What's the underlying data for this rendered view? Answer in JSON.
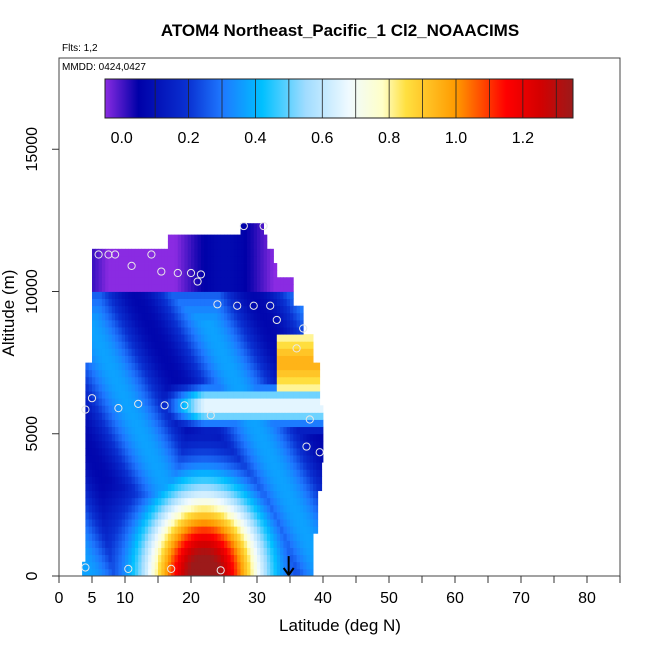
{
  "chart_data": {
    "type": "heatmap",
    "title": "ATOM4 Northeast_Pacific_1 Cl2_NOAACIMS",
    "flights_label": "Flts: 1,2",
    "date_label": "MMDD: 0424,0427",
    "xlabel": "Latitude (deg N)",
    "ylabel": "Altitude (m)",
    "xlim": [
      0,
      85
    ],
    "ylim": [
      0,
      18000
    ],
    "x_ticks": [
      0,
      5,
      10,
      20,
      30,
      40,
      50,
      60,
      70,
      80
    ],
    "x_minor_ticks": [
      15,
      25,
      35,
      45,
      55,
      65,
      75,
      85
    ],
    "y_ticks": [
      0,
      5000,
      10000,
      15000
    ],
    "colorbar": {
      "range": [
        -0.05,
        1.35
      ],
      "tick_values": [
        0.0,
        0.2,
        0.4,
        0.6,
        0.8,
        1.0,
        1.2
      ],
      "tick_labels": [
        "0.0",
        "0.2",
        "0.4",
        "0.6",
        "0.8",
        "1.0",
        "1.2"
      ],
      "colors": [
        {
          "v": -0.05,
          "c": "#8a2be2"
        },
        {
          "v": 0.05,
          "c": "#0000a8"
        },
        {
          "v": 0.2,
          "c": "#0a32d2"
        },
        {
          "v": 0.3,
          "c": "#1e78ff"
        },
        {
          "v": 0.42,
          "c": "#00c0ff"
        },
        {
          "v": 0.55,
          "c": "#a0dcff"
        },
        {
          "v": 0.68,
          "c": "#f0faff"
        },
        {
          "v": 0.78,
          "c": "#ffffc8"
        },
        {
          "v": 0.85,
          "c": "#ffe040"
        },
        {
          "v": 1.0,
          "c": "#ff9a00"
        },
        {
          "v": 1.15,
          "c": "#ff0000"
        },
        {
          "v": 1.25,
          "c": "#d40000"
        },
        {
          "v": 1.35,
          "c": "#9c1a1a"
        }
      ]
    },
    "curtain": {
      "top_profile": [
        {
          "alt_top": 500,
          "lat_min": 3.5,
          "lat_max": 38.5
        },
        {
          "alt_top": 1500,
          "lat_min": 4.0,
          "lat_max": 38.5
        },
        {
          "alt_top": 3000,
          "lat_min": 4.0,
          "lat_max": 39.2
        },
        {
          "alt_top": 4000,
          "lat_min": 4.0,
          "lat_max": 39.8
        },
        {
          "alt_top": 6000,
          "lat_min": 4.0,
          "lat_max": 40.0
        },
        {
          "alt_top": 7500,
          "lat_min": 4.0,
          "lat_max": 39.5
        },
        {
          "alt_top": 8500,
          "lat_min": 5.0,
          "lat_max": 38.5
        },
        {
          "alt_top": 9500,
          "lat_min": 5.0,
          "lat_max": 37.0
        },
        {
          "alt_top": 10500,
          "lat_min": 5.0,
          "lat_max": 35.5
        },
        {
          "alt_top": 11000,
          "lat_min": 5.0,
          "lat_max": 33.0
        },
        {
          "alt_top": 11500,
          "lat_min": 5.0,
          "lat_max": 32.5
        },
        {
          "alt_top": 12000,
          "lat_min": 16.5,
          "lat_max": 31.5
        },
        {
          "alt_top": 12400,
          "lat_min": 27.5,
          "lat_max": 31.0
        }
      ],
      "plume": {
        "lat": 22,
        "lat_halfwidth": 9,
        "alt_halfwidth": 3200,
        "peak": 1.3
      },
      "mid_band": {
        "alt": 6000,
        "alt_halfwidth": 700,
        "value": 0.68,
        "lat_start": 14
      }
    },
    "observations": [
      {
        "lat": 4.0,
        "alt": 300
      },
      {
        "lat": 10.5,
        "alt": 250
      },
      {
        "lat": 17.0,
        "alt": 250
      },
      {
        "lat": 24.5,
        "alt": 200
      },
      {
        "lat": 4.0,
        "alt": 5850
      },
      {
        "lat": 5.0,
        "alt": 6250
      },
      {
        "lat": 9.0,
        "alt": 5900
      },
      {
        "lat": 12.0,
        "alt": 6050
      },
      {
        "lat": 16.0,
        "alt": 6000
      },
      {
        "lat": 19.0,
        "alt": 6000
      },
      {
        "lat": 23.0,
        "alt": 5650
      },
      {
        "lat": 38.0,
        "alt": 5500
      },
      {
        "lat": 37.5,
        "alt": 4550
      },
      {
        "lat": 39.5,
        "alt": 4350
      },
      {
        "lat": 36.0,
        "alt": 8000
      },
      {
        "lat": 37.0,
        "alt": 8700
      },
      {
        "lat": 33.0,
        "alt": 9000
      },
      {
        "lat": 24.0,
        "alt": 9550
      },
      {
        "lat": 27.0,
        "alt": 9500
      },
      {
        "lat": 29.5,
        "alt": 9500
      },
      {
        "lat": 32.0,
        "alt": 9500
      },
      {
        "lat": 15.5,
        "alt": 10700
      },
      {
        "lat": 18.0,
        "alt": 10650
      },
      {
        "lat": 20.0,
        "alt": 10650
      },
      {
        "lat": 21.5,
        "alt": 10600
      },
      {
        "lat": 21.0,
        "alt": 10350
      },
      {
        "lat": 11.0,
        "alt": 10900
      },
      {
        "lat": 6.0,
        "alt": 11300
      },
      {
        "lat": 7.5,
        "alt": 11300
      },
      {
        "lat": 8.5,
        "alt": 11300
      },
      {
        "lat": 14.0,
        "alt": 11300
      },
      {
        "lat": 28.0,
        "alt": 12300
      },
      {
        "lat": 31.0,
        "alt": 12300
      }
    ],
    "arrow": {
      "lat": 34.8,
      "alt_top": 700,
      "alt_bottom": 0
    }
  }
}
